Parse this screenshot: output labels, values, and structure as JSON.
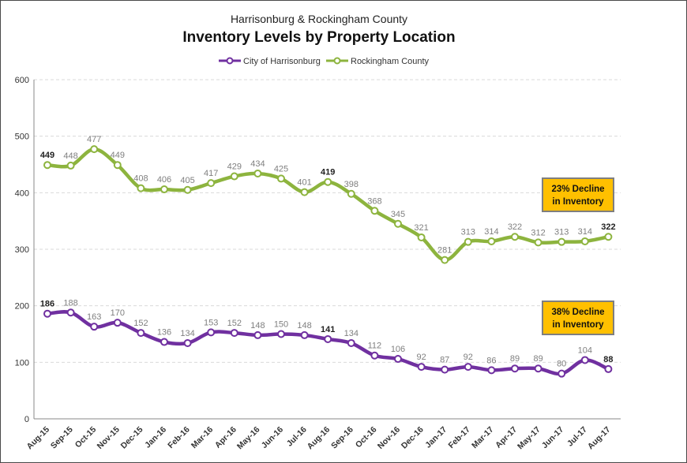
{
  "chart_data": {
    "type": "line",
    "subtitle": "Harrisonburg & Rockingham County",
    "title": "Inventory Levels by Property Location",
    "xlabel": "",
    "ylabel": "",
    "ylim": [
      0,
      600
    ],
    "yticks": [
      "0",
      "100",
      "200",
      "300",
      "400",
      "500",
      "600"
    ],
    "grid": true,
    "legend_position": "top-center",
    "categories": [
      "Aug-15",
      "Sep-15",
      "Oct-15",
      "Nov-15",
      "Dec-15",
      "Jan-16",
      "Feb-16",
      "Mar-16",
      "Apr-16",
      "May-16",
      "Jun-16",
      "Jul-16",
      "Aug-16",
      "Sep-16",
      "Oct-16",
      "Nov-16",
      "Dec-16",
      "Jan-17",
      "Feb-17",
      "Mar-17",
      "Apr-17",
      "May-17",
      "Jun-17",
      "Jul-17",
      "Aug-17"
    ],
    "series": [
      {
        "name": "City of Harrisonburg",
        "color": "#7030a0",
        "values": [
          186,
          188,
          163,
          170,
          152,
          136,
          134,
          153,
          152,
          148,
          150,
          148,
          141,
          134,
          112,
          106,
          92,
          87,
          92,
          86,
          89,
          89,
          80,
          104,
          88
        ],
        "bold_labels": [
          0,
          12,
          24
        ]
      },
      {
        "name": "Rockingham County",
        "color": "#8db43e",
        "values": [
          449,
          448,
          477,
          449,
          408,
          406,
          405,
          417,
          429,
          434,
          425,
          401,
          419,
          398,
          368,
          345,
          321,
          281,
          313,
          314,
          322,
          312,
          313,
          314,
          322
        ],
        "bold_labels": [
          0,
          12,
          24
        ]
      }
    ],
    "annotations": [
      {
        "line1": "23% Decline",
        "line2": "in Inventory",
        "series": "Rockingham County"
      },
      {
        "line1": "38% Decline",
        "line2": "in Inventory",
        "series": "City of Harrisonburg"
      }
    ]
  }
}
